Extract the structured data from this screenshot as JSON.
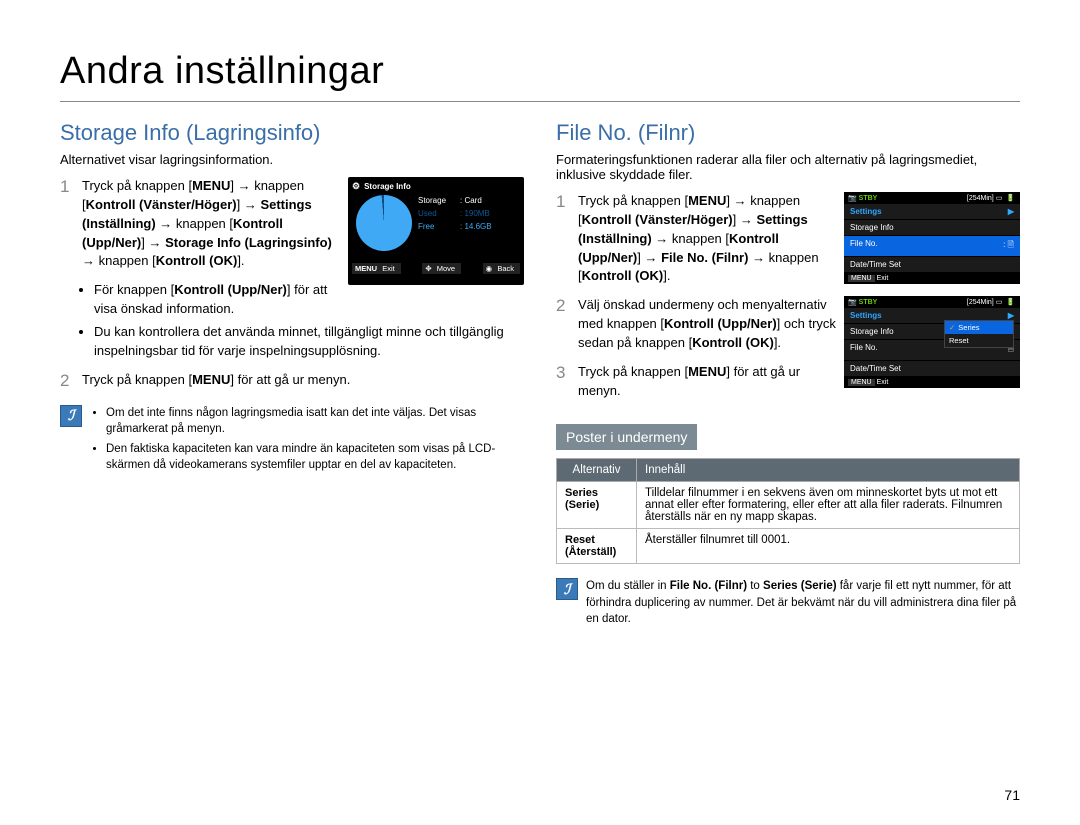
{
  "page": {
    "title": "Andra inställningar",
    "number": "71"
  },
  "left": {
    "heading": "Storage Info (Lagringsinfo)",
    "intro": "Alternativet visar lagringsinformation.",
    "step1": "Tryck på knappen [MENU] → knappen [Kontroll (Vänster/Höger)] → Settings (Inställning) → knappen [Kontroll (Upp/Ner)] → Storage Info (Lagringsinfo) → knappen [Kontroll (OK)].",
    "bullet1": "För knappen [Kontroll (Upp/Ner)] för att visa önskad information.",
    "bullet2": "Du kan kontrollera det använda minnet, tillgängligt minne och tillgänglig inspelningsbar tid för varje inspelningsupplösning.",
    "step2": "Tryck på knappen [MENU] för att gå ur menyn.",
    "note1": "Om det inte finns någon lagringsmedia isatt kan det inte väljas. Det visas gråmarkerat på menyn.",
    "note2": "Den faktiska kapaciteten kan vara mindre än kapaciteten som visas på LCD-skärmen då videokamerans systemfiler upptar en del av kapaciteten.",
    "screen": {
      "title": "Storage Info",
      "storage_lbl": "Storage",
      "storage_val": ": Card",
      "used_lbl": "Used",
      "used_val": ": 190MB",
      "free_lbl": "Free",
      "free_val": ": 14.6GB",
      "exit": "Exit",
      "move": "Move",
      "back": "Back"
    }
  },
  "right": {
    "heading": "File No. (Filnr)",
    "intro": "Formateringsfunktionen raderar alla filer och alternativ på lagringsmediet, inklusive skyddade filer.",
    "step1": "Tryck på knappen [MENU] → knappen [Kontroll (Vänster/Höger)] → Settings (Inställning) → knappen [Kontroll (Upp/Ner)] → File No. (Filnr) → knappen [Kontroll (OK)].",
    "step2": "Välj önskad undermeny och menyalternativ med knappen [Kontroll (Upp/Ner)] och tryck sedan på knappen [Kontroll (OK)].",
    "step3": "Tryck på knappen [MENU] för att gå ur menyn.",
    "screen1": {
      "stby": "STBY",
      "time": "[254Min]",
      "settings": "Settings",
      "storage_info": "Storage Info",
      "file_no": "File No.",
      "date_time": "Date/Time Set",
      "exit": "Exit",
      "menu_tag": "MENU"
    },
    "screen2": {
      "stby": "STBY",
      "time": "[254Min]",
      "settings": "Settings",
      "storage_info": "Storage Info",
      "file_no": "File No.",
      "date_time": "Date/Time Set",
      "series": "Series",
      "reset": "Reset",
      "exit": "Exit",
      "menu_tag": "MENU"
    },
    "submenu_title": "Poster i undermeny",
    "table": {
      "col1": "Alternativ",
      "col2": "Innehåll",
      "row1_alt": "Series (Serie)",
      "row1_desc": "Tilldelar filnummer i en sekvens även om minneskortet byts ut mot ett annat eller efter formatering, eller efter att alla filer raderats. Filnumren återställs när en ny mapp skapas.",
      "row2_alt": "Reset (Återställ)",
      "row2_desc": "Återställer filnumret till 0001."
    },
    "note": "Om du ställer in File No. (Filnr) to Series (Serie) får varje fil ett nytt nummer, för att förhindra duplicering av nummer. Det är bekvämt när du vill administrera dina filer på en dator."
  }
}
